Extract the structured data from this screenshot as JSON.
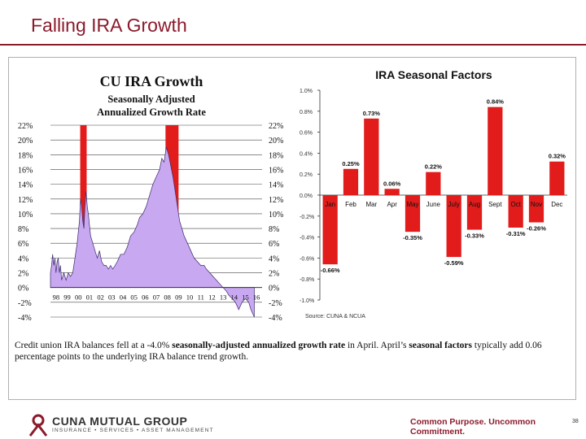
{
  "slide": {
    "title": "Falling IRA Growth",
    "caption_parts": [
      {
        "text": "Credit union IRA balances fell at a -4.0% ",
        "bold": false
      },
      {
        "text": "seasonally-adjusted annualized growth rate",
        "bold": true
      },
      {
        "text": " in April. April’s ",
        "bold": false
      },
      {
        "text": "seasonal factors",
        "bold": true
      },
      {
        "text": " typically add 0.06 percentage points to the underlying IRA balance trend growth.",
        "bold": false
      }
    ],
    "page_number": "38"
  },
  "footer": {
    "logo_name": "CUNA MUTUAL GROUP",
    "logo_sub": "INSURANCE • SERVICES • ASSET MANAGEMENT",
    "tagline": "Common Purpose. Uncommon Commitment."
  },
  "colors": {
    "brand": "#8b1a2b",
    "bar_red": "#e21b1b",
    "area_fill": "#c8a8f0",
    "area_stroke": "#3a2a6a"
  },
  "chart_data": [
    {
      "type": "area",
      "title": "CU IRA Growth",
      "subtitle_lines": [
        "Seasonally Adjusted",
        "Annualized Growth Rate"
      ],
      "ylim": [
        -4,
        22
      ],
      "y_ticks": [
        "22%",
        "20%",
        "18%",
        "16%",
        "14%",
        "12%",
        "10%",
        "8%",
        "6%",
        "4%",
        "2%",
        "0%",
        "-2%",
        "-4%"
      ],
      "y_tick_values": [
        22,
        20,
        18,
        16,
        14,
        12,
        10,
        8,
        6,
        4,
        2,
        0,
        -2,
        -4
      ],
      "x_ticks": [
        "98",
        "99",
        "00",
        "01",
        "02",
        "03",
        "04",
        "05",
        "06",
        "07",
        "08",
        "09",
        "10",
        "11",
        "12",
        "13",
        "14",
        "15",
        "16"
      ],
      "x_range": [
        1998,
        2017
      ],
      "grid": true,
      "highlight_spans": [
        [
          2000.67,
          2001.25
        ],
        [
          2008.33,
          2009.5
        ]
      ],
      "series": [
        {
          "x": [
            1998.0,
            1998.1,
            1998.2,
            1998.3,
            1998.4,
            1998.5,
            1998.6,
            1998.7,
            1998.8,
            1998.9,
            1999.0,
            1999.2,
            1999.4,
            1999.6,
            1999.8,
            2000.0,
            2000.2,
            2000.4,
            2000.6,
            2000.7,
            2000.8,
            2000.9,
            2001.0,
            2001.1,
            2001.2,
            2001.3,
            2001.4,
            2001.6,
            2001.8,
            2002.0,
            2002.2,
            2002.4,
            2002.6,
            2002.8,
            2003.0,
            2003.2,
            2003.4,
            2003.6,
            2003.8,
            2004.0,
            2004.3,
            2004.6,
            2004.9,
            2005.2,
            2005.5,
            2005.8,
            2006.0,
            2006.3,
            2006.6,
            2006.9,
            2007.2,
            2007.5,
            2007.8,
            2008.0,
            2008.2,
            2008.4,
            2008.6,
            2008.8,
            2009.0,
            2009.2,
            2009.4,
            2009.6,
            2009.8,
            2010.0,
            2010.3,
            2010.6,
            2010.9,
            2011.2,
            2011.5,
            2011.8,
            2012.0,
            2012.3,
            2012.6,
            2012.9,
            2013.2,
            2013.5,
            2013.8,
            2014.0,
            2014.3,
            2014.6,
            2014.9,
            2015.2,
            2015.5,
            2015.8,
            2016.0,
            2016.3
          ],
          "values": [
            2,
            3,
            4.5,
            3,
            4,
            2,
            3.5,
            4,
            2,
            3,
            1,
            2,
            1,
            2,
            1.5,
            2,
            4,
            6,
            9,
            12,
            11,
            9,
            8,
            11,
            13,
            11,
            10,
            7,
            6,
            5,
            4,
            5,
            3.5,
            3,
            3,
            2.5,
            3,
            2.5,
            3,
            3.5,
            4.5,
            4.5,
            5.5,
            7,
            7.5,
            8.5,
            9.5,
            10,
            11,
            12.5,
            14,
            15,
            16,
            17.5,
            17,
            19,
            18,
            16.5,
            15,
            13,
            11,
            9,
            8,
            7,
            6,
            5,
            4,
            3.5,
            3,
            3,
            2.5,
            2,
            1.5,
            1,
            0.5,
            0,
            -0.5,
            -1,
            -1.5,
            -2,
            -3,
            -2,
            -1.5,
            -2,
            -3,
            -4
          ]
        }
      ]
    },
    {
      "type": "bar",
      "title": "IRA Seasonal Factors",
      "categories": [
        "Jan",
        "Feb",
        "Mar",
        "Apr",
        "May",
        "June",
        "July",
        "Aug",
        "Sept",
        "Oct",
        "Nov",
        "Dec"
      ],
      "values": [
        -0.66,
        0.25,
        0.73,
        0.06,
        -0.35,
        0.22,
        -0.59,
        -0.33,
        0.84,
        -0.31,
        -0.26,
        0.32
      ],
      "data_labels": [
        "-0.66%",
        "0.25%",
        "0.73%",
        "0.06%",
        "-0.35%",
        "0.22%",
        "-0.59%",
        "-0.33%",
        "0.84%",
        "-0.31%",
        "-0.26%",
        "0.32%"
      ],
      "ylim": [
        -1.0,
        1.0
      ],
      "y_ticks": [
        "1.0%",
        "0.8%",
        "0.6%",
        "0.4%",
        "0.2%",
        "0.0%",
        "-0.2%",
        "-0.4%",
        "-0.6%",
        "-0.8%",
        "-1.0%"
      ],
      "y_tick_values": [
        1.0,
        0.8,
        0.6,
        0.4,
        0.2,
        0.0,
        -0.2,
        -0.4,
        -0.6,
        -0.8,
        -1.0
      ],
      "source": "Source: CUNA & NCUA"
    }
  ]
}
